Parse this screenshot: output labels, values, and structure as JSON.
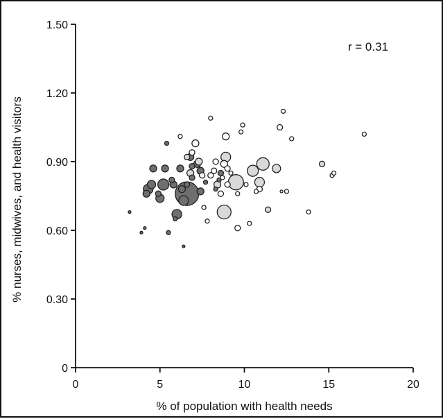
{
  "chart_data": {
    "type": "scatter",
    "xlabel": "% of population with health needs",
    "ylabel": "% nurses, midwives, and health visitors",
    "annotation": "r = 0.31",
    "xlim": [
      0,
      20
    ],
    "ylim": [
      0,
      1.5
    ],
    "xticks": [
      0,
      5,
      10,
      15,
      20
    ],
    "yticks": [
      0,
      0.3,
      0.6,
      0.9,
      1.2,
      1.5
    ],
    "ytick_labels": [
      "0",
      "0.30",
      "0.60",
      "0.90",
      "1.20",
      "1.50"
    ],
    "grid": false,
    "colors": {
      "dark": "#6f6f6f",
      "light": "#d9d9d9",
      "white": "#ffffff",
      "stroke": "#222222"
    },
    "bubble_size_encoding": "relative bubble radius",
    "points": [
      {
        "x": 3.2,
        "y": 0.68,
        "r": 2,
        "g": "dark"
      },
      {
        "x": 3.9,
        "y": 0.59,
        "r": 2,
        "g": "dark"
      },
      {
        "x": 4.1,
        "y": 0.61,
        "r": 2,
        "g": "dark"
      },
      {
        "x": 4.2,
        "y": 0.76,
        "r": 5,
        "g": "dark"
      },
      {
        "x": 4.3,
        "y": 0.78,
        "r": 7,
        "g": "dark"
      },
      {
        "x": 4.5,
        "y": 0.8,
        "r": 6,
        "g": "dark"
      },
      {
        "x": 4.6,
        "y": 0.87,
        "r": 5,
        "g": "dark"
      },
      {
        "x": 4.9,
        "y": 0.76,
        "r": 4,
        "g": "dark"
      },
      {
        "x": 5.0,
        "y": 0.74,
        "r": 6,
        "g": "dark"
      },
      {
        "x": 5.2,
        "y": 0.8,
        "r": 8,
        "g": "dark"
      },
      {
        "x": 5.3,
        "y": 0.87,
        "r": 5,
        "g": "dark"
      },
      {
        "x": 5.4,
        "y": 0.98,
        "r": 3,
        "g": "dark"
      },
      {
        "x": 5.5,
        "y": 0.59,
        "r": 3,
        "g": "dark"
      },
      {
        "x": 5.7,
        "y": 0.82,
        "r": 4,
        "g": "dark"
      },
      {
        "x": 5.8,
        "y": 0.8,
        "r": 5,
        "g": "dark"
      },
      {
        "x": 5.9,
        "y": 0.65,
        "r": 3,
        "g": "dark"
      },
      {
        "x": 6.0,
        "y": 0.67,
        "r": 7,
        "g": "dark"
      },
      {
        "x": 6.2,
        "y": 0.87,
        "r": 5,
        "g": "dark"
      },
      {
        "x": 6.3,
        "y": 0.78,
        "r": 5,
        "g": "dark"
      },
      {
        "x": 6.6,
        "y": 0.76,
        "r": 17,
        "g": "dark"
      },
      {
        "x": 6.4,
        "y": 0.73,
        "r": 7,
        "g": "dark"
      },
      {
        "x": 6.6,
        "y": 0.8,
        "r": 4,
        "g": "dark"
      },
      {
        "x": 6.9,
        "y": 0.83,
        "r": 4,
        "g": "dark"
      },
      {
        "x": 7.2,
        "y": 0.89,
        "r": 5,
        "g": "dark"
      },
      {
        "x": 7.4,
        "y": 0.86,
        "r": 5,
        "g": "dark"
      },
      {
        "x": 7.4,
        "y": 0.77,
        "r": 5,
        "g": "dark"
      },
      {
        "x": 6.4,
        "y": 0.53,
        "r": 2,
        "g": "dark"
      },
      {
        "x": 6.9,
        "y": 0.88,
        "r": 4,
        "g": "dark"
      },
      {
        "x": 6.8,
        "y": 0.92,
        "r": 5,
        "g": "dark"
      },
      {
        "x": 7.7,
        "y": 0.81,
        "r": 3,
        "g": "dark"
      },
      {
        "x": 8.6,
        "y": 0.85,
        "r": 4,
        "g": "dark"
      },
      {
        "x": 8.3,
        "y": 0.78,
        "r": 3,
        "g": "dark"
      },
      {
        "x": 8.5,
        "y": 0.82,
        "r": 3,
        "g": "dark"
      },
      {
        "x": 6.2,
        "y": 1.01,
        "r": 3,
        "g": "white"
      },
      {
        "x": 6.6,
        "y": 0.92,
        "r": 4,
        "g": "light"
      },
      {
        "x": 6.8,
        "y": 0.85,
        "r": 5,
        "g": "light"
      },
      {
        "x": 6.9,
        "y": 0.94,
        "r": 4,
        "g": "white"
      },
      {
        "x": 7.1,
        "y": 0.98,
        "r": 5,
        "g": "white"
      },
      {
        "x": 7.3,
        "y": 0.9,
        "r": 5,
        "g": "light"
      },
      {
        "x": 7.5,
        "y": 0.84,
        "r": 4,
        "g": "white"
      },
      {
        "x": 7.6,
        "y": 0.7,
        "r": 3,
        "g": "white"
      },
      {
        "x": 7.8,
        "y": 0.64,
        "r": 3,
        "g": "white"
      },
      {
        "x": 8.0,
        "y": 0.84,
        "r": 4,
        "g": "white"
      },
      {
        "x": 8.0,
        "y": 1.09,
        "r": 3,
        "g": "white"
      },
      {
        "x": 8.2,
        "y": 0.86,
        "r": 4,
        "g": "white"
      },
      {
        "x": 8.3,
        "y": 0.9,
        "r": 4,
        "g": "white"
      },
      {
        "x": 8.4,
        "y": 0.8,
        "r": 5,
        "g": "light"
      },
      {
        "x": 8.6,
        "y": 0.76,
        "r": 4,
        "g": "white"
      },
      {
        "x": 8.7,
        "y": 0.83,
        "r": 3,
        "g": "white"
      },
      {
        "x": 8.8,
        "y": 0.89,
        "r": 5,
        "g": "white"
      },
      {
        "x": 8.9,
        "y": 0.92,
        "r": 7,
        "g": "light"
      },
      {
        "x": 8.9,
        "y": 1.01,
        "r": 5,
        "g": "white"
      },
      {
        "x": 8.8,
        "y": 0.68,
        "r": 10,
        "g": "light"
      },
      {
        "x": 9.0,
        "y": 0.87,
        "r": 4,
        "g": "white"
      },
      {
        "x": 9.0,
        "y": 0.8,
        "r": 4,
        "g": "white"
      },
      {
        "x": 9.2,
        "y": 0.85,
        "r": 3,
        "g": "white"
      },
      {
        "x": 9.5,
        "y": 0.81,
        "r": 11,
        "g": "light"
      },
      {
        "x": 9.6,
        "y": 0.61,
        "r": 4,
        "g": "white"
      },
      {
        "x": 9.6,
        "y": 0.76,
        "r": 3,
        "g": "white"
      },
      {
        "x": 9.8,
        "y": 1.03,
        "r": 3,
        "g": "white"
      },
      {
        "x": 9.9,
        "y": 1.06,
        "r": 3,
        "g": "white"
      },
      {
        "x": 10.1,
        "y": 0.8,
        "r": 3,
        "g": "white"
      },
      {
        "x": 10.3,
        "y": 0.63,
        "r": 3,
        "g": "white"
      },
      {
        "x": 10.5,
        "y": 0.86,
        "r": 8,
        "g": "light"
      },
      {
        "x": 10.7,
        "y": 0.77,
        "r": 3,
        "g": "white"
      },
      {
        "x": 10.9,
        "y": 0.81,
        "r": 7,
        "g": "light"
      },
      {
        "x": 10.9,
        "y": 0.78,
        "r": 4,
        "g": "white"
      },
      {
        "x": 11.1,
        "y": 0.89,
        "r": 9,
        "g": "light"
      },
      {
        "x": 11.4,
        "y": 0.69,
        "r": 4,
        "g": "light"
      },
      {
        "x": 11.9,
        "y": 0.87,
        "r": 6,
        "g": "light"
      },
      {
        "x": 12.1,
        "y": 1.05,
        "r": 4,
        "g": "white"
      },
      {
        "x": 12.2,
        "y": 0.77,
        "r": 2,
        "g": "white"
      },
      {
        "x": 12.3,
        "y": 1.12,
        "r": 3,
        "g": "white"
      },
      {
        "x": 12.5,
        "y": 0.77,
        "r": 3,
        "g": "white"
      },
      {
        "x": 12.8,
        "y": 1.0,
        "r": 3,
        "g": "white"
      },
      {
        "x": 13.8,
        "y": 0.68,
        "r": 3,
        "g": "white"
      },
      {
        "x": 14.6,
        "y": 0.89,
        "r": 4,
        "g": "light"
      },
      {
        "x": 15.2,
        "y": 0.84,
        "r": 3,
        "g": "white"
      },
      {
        "x": 15.3,
        "y": 0.85,
        "r": 3,
        "g": "white"
      },
      {
        "x": 17.1,
        "y": 1.02,
        "r": 3,
        "g": "white"
      }
    ]
  }
}
